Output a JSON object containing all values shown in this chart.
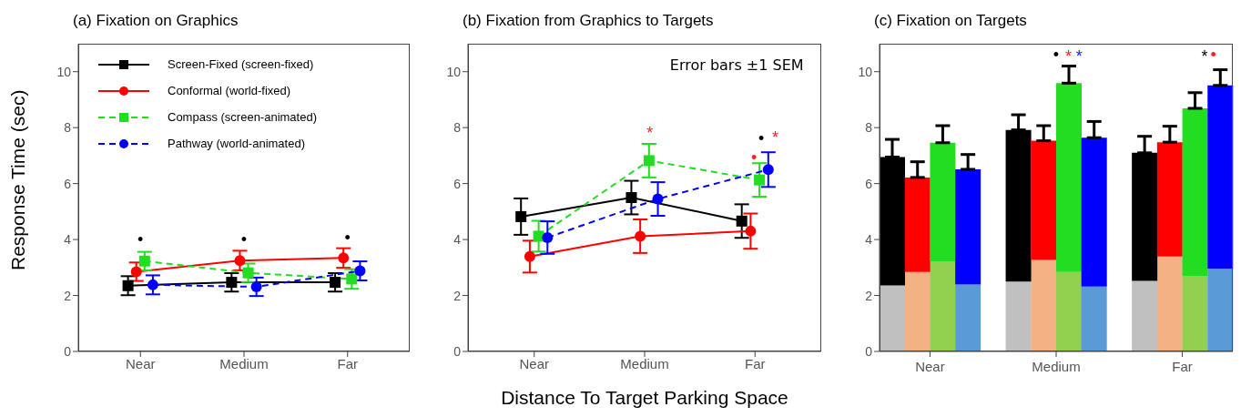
{
  "chart_data": [
    {
      "type": "line",
      "title": "(a) Fixation on Graphics",
      "ylabel": "Response Time (sec)",
      "categories": [
        "Near",
        "Medium",
        "Far"
      ],
      "ylim": [
        0,
        11
      ],
      "yticks": [
        0,
        2,
        4,
        6,
        8,
        10
      ],
      "grid": false,
      "legend": "top left",
      "series": [
        {
          "name": "Screen-Fixed (screen-fixed)",
          "color": "#000000",
          "marker": "square",
          "line_style": "solid",
          "values": [
            2.35,
            2.47,
            2.47
          ],
          "errors": [
            0.34,
            0.33,
            0.33
          ]
        },
        {
          "name": "Conformal (world-fixed)",
          "color": "#ff0000",
          "marker": "circle",
          "line_style": "solid",
          "values": [
            2.85,
            3.25,
            3.34
          ],
          "errors": [
            0.33,
            0.35,
            0.35
          ]
        },
        {
          "name": "Compass (screen-animated)",
          "color": "#22dd22",
          "marker": "square",
          "line_style": "dashed",
          "values": [
            3.23,
            2.81,
            2.59
          ],
          "errors": [
            0.33,
            0.33,
            0.35
          ]
        },
        {
          "name": "Pathway (world-animated)",
          "color": "#0000ff",
          "marker": "circle",
          "line_style": "dashed",
          "values": [
            2.38,
            2.31,
            2.88
          ],
          "errors": [
            0.34,
            0.33,
            0.34
          ]
        }
      ],
      "annotations": [
        "•",
        "•",
        "•"
      ]
    },
    {
      "type": "line",
      "title": "(b) Fixation from Graphics to Targets",
      "xlabel": "Distance To Target Parking Space",
      "categories": [
        "Near",
        "Medium",
        "Far"
      ],
      "ylim": [
        0,
        11
      ],
      "yticks": [
        0,
        2,
        4,
        6,
        8,
        10
      ],
      "grid": false,
      "series": [
        {
          "color": "#000000",
          "marker": "square",
          "line_style": "solid",
          "values": [
            4.82,
            5.5,
            4.66
          ],
          "errors": [
            0.65,
            0.6,
            0.6
          ]
        },
        {
          "color": "#ff0000",
          "marker": "circle",
          "line_style": "solid",
          "values": [
            3.39,
            4.12,
            4.3
          ],
          "errors": [
            0.57,
            0.6,
            0.63
          ]
        },
        {
          "color": "#22dd22",
          "marker": "square",
          "line_style": "dashed",
          "values": [
            4.12,
            6.82,
            6.13
          ],
          "errors": [
            0.55,
            0.6,
            0.6
          ]
        },
        {
          "color": "#0000ff",
          "marker": "circle",
          "line_style": "dashed",
          "values": [
            4.07,
            5.45,
            6.5
          ],
          "errors": [
            0.58,
            0.6,
            0.62
          ]
        }
      ],
      "annotations": [
        "Error bars ±1 SEM",
        "*",
        "•",
        "•",
        "*"
      ]
    },
    {
      "type": "bar",
      "title": "(c) Fixation on Targets",
      "categories": [
        null,
        "Near",
        null,
        null,
        null,
        null,
        "Medium",
        null,
        null,
        null,
        null,
        "Far",
        null,
        null
      ],
      "ylim": [
        0,
        11
      ],
      "yticks": [
        0,
        2,
        4,
        6,
        8,
        10
      ],
      "grid": false,
      "stacked": true,
      "series": [
        {
          "colors": [
            "#c0c0c0",
            "#f4b183",
            "#92d050",
            "#5b9bd5",
            null,
            "#c0c0c0",
            "#f4b183",
            "#92d050",
            "#5b9bd5",
            null,
            "#c0c0c0",
            "#f4b183",
            "#92d050",
            "#5b9bd5"
          ],
          "values": [
            2.36,
            2.84,
            3.22,
            2.39,
            null,
            2.5,
            3.27,
            2.84,
            2.32,
            null,
            2.52,
            3.39,
            2.7,
            2.96
          ]
        },
        {
          "colors": [
            "#000000",
            "#ff0000",
            "#22dd22",
            "#0000ff",
            null,
            "#000000",
            "#ff0000",
            "#22dd22",
            "#0000ff",
            null,
            "#000000",
            "#ff0000",
            "#22dd22",
            "#0000ff"
          ],
          "values": [
            4.59,
            3.38,
            4.24,
            4.12,
            null,
            5.42,
            4.26,
            6.75,
            5.32,
            null,
            4.58,
            4.09,
            5.99,
            6.55
          ],
          "errors": [
            [
              6.95,
              7.58
            ],
            [
              6.22,
              6.78
            ],
            [
              7.46,
              8.07
            ],
            [
              6.51,
              7.04
            ],
            null,
            [
              7.92,
              8.46
            ],
            [
              7.53,
              8.07
            ],
            [
              9.59,
              10.2
            ],
            [
              7.64,
              8.22
            ],
            null,
            [
              7.1,
              7.69
            ],
            [
              7.48,
              8.05
            ],
            [
              8.69,
              9.25
            ],
            [
              9.51,
              10.07
            ]
          ]
        }
      ],
      "annotations": [
        "•",
        "*",
        "*",
        "*",
        "•"
      ]
    }
  ]
}
